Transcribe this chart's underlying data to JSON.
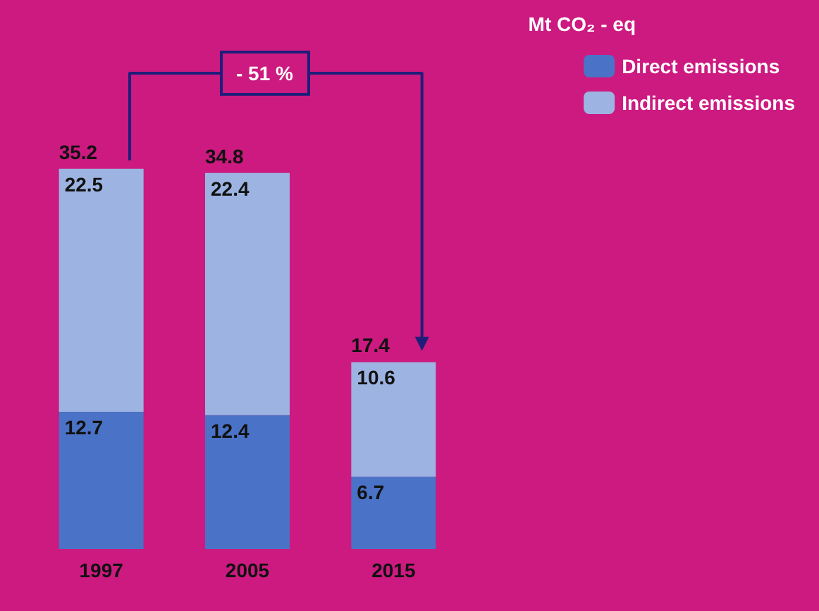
{
  "chart_data": {
    "type": "bar",
    "stacked": true,
    "categories": [
      "1997",
      "2005",
      "2015"
    ],
    "legend_title": "Mt CO₂ - eq",
    "legend": "top right",
    "data_labels": true,
    "series": [
      {
        "name": "Direct emissions",
        "color": "#4a72c6",
        "values": [
          12.7,
          12.4,
          6.7
        ]
      },
      {
        "name": "Indirect emissions",
        "color": "#9db4e2",
        "values": [
          22.5,
          22.4,
          10.6
        ]
      }
    ],
    "totals": [
      "35.2",
      "34.8",
      "17.4"
    ],
    "annotations": [
      "- 51 %"
    ]
  }
}
